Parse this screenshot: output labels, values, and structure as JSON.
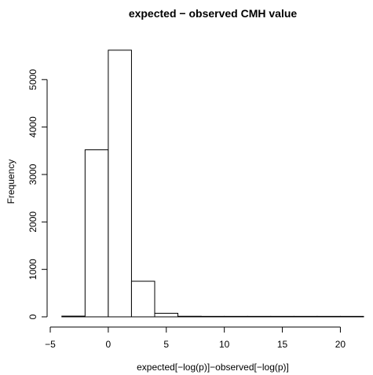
{
  "chart_data": {
    "type": "bar",
    "title": "expected − observed CMH value",
    "xlabel": "expected[−log(p)]−observed[−log(p)]",
    "ylabel": "Frequency",
    "xlim": [
      -5,
      22
    ],
    "ylim": [
      0,
      5700
    ],
    "x_ticks": [
      -5,
      0,
      5,
      10,
      15,
      20
    ],
    "x_tick_labels": [
      "−5",
      "0",
      "5",
      "10",
      "15",
      "20"
    ],
    "y_ticks": [
      0,
      1000,
      2000,
      3000,
      4000,
      5000
    ],
    "y_tick_labels": [
      "0",
      "1000",
      "2000",
      "3000",
      "4000",
      "5000"
    ],
    "bins": [
      {
        "start": -4,
        "end": -2,
        "value": 15
      },
      {
        "start": -2,
        "end": 0,
        "value": 3520
      },
      {
        "start": 0,
        "end": 2,
        "value": 5620
      },
      {
        "start": 2,
        "end": 4,
        "value": 750
      },
      {
        "start": 4,
        "end": 6,
        "value": 75
      },
      {
        "start": 6,
        "end": 8,
        "value": 12
      },
      {
        "start": 8,
        "end": 10,
        "value": 4
      },
      {
        "start": 10,
        "end": 12,
        "value": 2
      },
      {
        "start": 12,
        "end": 14,
        "value": 1
      },
      {
        "start": 14,
        "end": 16,
        "value": 1
      },
      {
        "start": 16,
        "end": 18,
        "value": 0
      },
      {
        "start": 18,
        "end": 20,
        "value": 0
      },
      {
        "start": 20,
        "end": 22,
        "value": 1
      }
    ],
    "grid": false,
    "bar_fill": "#ffffff",
    "bar_stroke": "#000000"
  }
}
